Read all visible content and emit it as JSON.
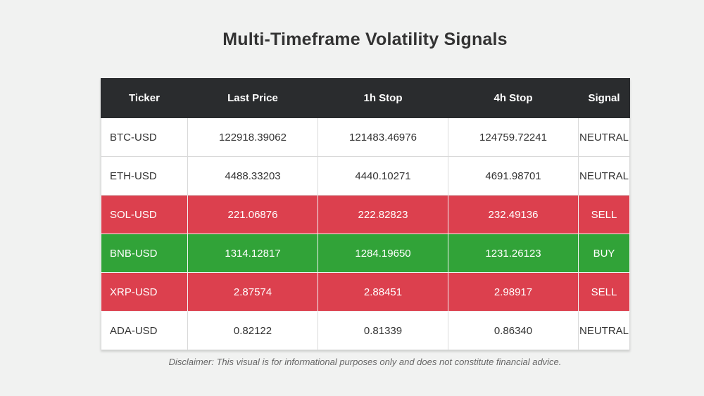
{
  "title": "Multi-Timeframe Volatility Signals",
  "disclaimer": "Disclaimer: This visual is for informational purposes only and does not constitute financial advice.",
  "table": {
    "columns": [
      "Ticker",
      "Last Price",
      "1h Stop",
      "4h Stop",
      "Signal"
    ],
    "rows": [
      {
        "ticker": "BTC-USD",
        "last_price": "122918.39062",
        "stop_1h": "121483.46976",
        "stop_4h": "124759.72241",
        "signal": "NEUTRAL"
      },
      {
        "ticker": "ETH-USD",
        "last_price": "4488.33203",
        "stop_1h": "4440.10271",
        "stop_4h": "4691.98701",
        "signal": "NEUTRAL"
      },
      {
        "ticker": "SOL-USD",
        "last_price": "221.06876",
        "stop_1h": "222.82823",
        "stop_4h": "232.49136",
        "signal": "SELL"
      },
      {
        "ticker": "BNB-USD",
        "last_price": "1314.12817",
        "stop_1h": "1284.19650",
        "stop_4h": "1231.26123",
        "signal": "BUY"
      },
      {
        "ticker": "XRP-USD",
        "last_price": "2.87574",
        "stop_1h": "2.88451",
        "stop_4h": "2.98917",
        "signal": "SELL"
      },
      {
        "ticker": "ADA-USD",
        "last_price": "0.82122",
        "stop_1h": "0.81339",
        "stop_4h": "0.86340",
        "signal": "NEUTRAL"
      }
    ]
  },
  "colors": {
    "page_bg": "#f1f2f1",
    "header_bg": "#2a2c2e",
    "neutral_bg": "#ffffff",
    "sell": "#dc404e",
    "buy": "#31a338"
  },
  "chart_data": {
    "type": "table",
    "title": "Multi-Timeframe Volatility Signals",
    "columns": [
      "Ticker",
      "Last Price",
      "1h Stop",
      "4h Stop",
      "Signal"
    ],
    "rows": [
      [
        "BTC-USD",
        122918.39062,
        121483.46976,
        124759.72241,
        "NEUTRAL"
      ],
      [
        "ETH-USD",
        4488.33203,
        4440.10271,
        4691.98701,
        "NEUTRAL"
      ],
      [
        "SOL-USD",
        221.06876,
        222.82823,
        232.49136,
        "SELL"
      ],
      [
        "BNB-USD",
        1314.12817,
        1284.1965,
        1231.26123,
        "BUY"
      ],
      [
        "XRP-USD",
        2.87574,
        2.88451,
        2.98917,
        "SELL"
      ],
      [
        "ADA-USD",
        0.82122,
        0.81339,
        0.8634,
        "NEUTRAL"
      ]
    ],
    "signal_row_colors": {
      "NEUTRAL": "#ffffff",
      "SELL": "#dc404e",
      "BUY": "#31a338"
    },
    "notes": "Row background encodes signal: red = SELL, green = BUY, white = NEUTRAL"
  }
}
